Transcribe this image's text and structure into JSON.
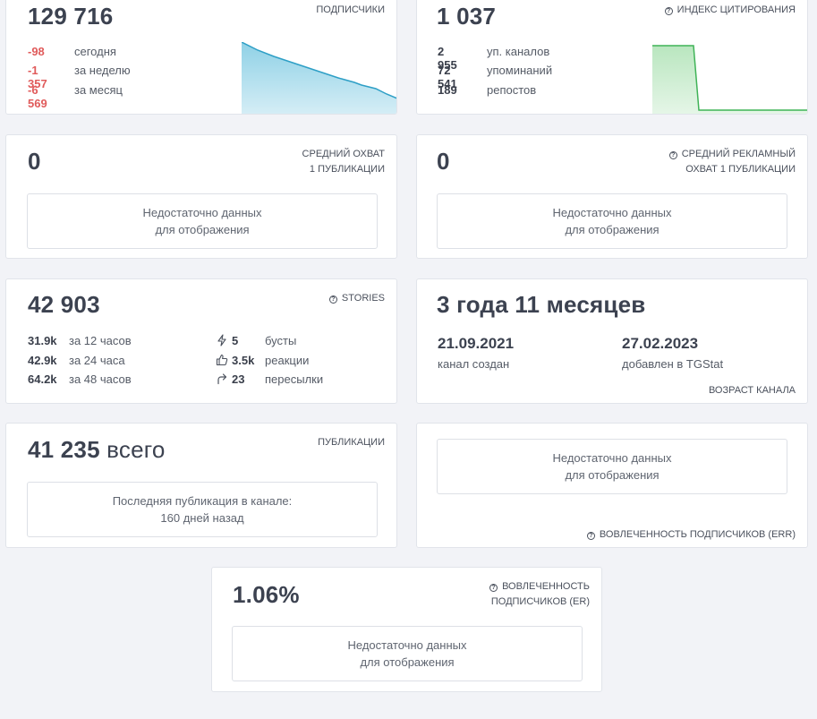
{
  "subscribers": {
    "value": "129 716",
    "label": "ПОДПИСЧИКИ",
    "rows": [
      {
        "value": "-98",
        "text": "сегодня"
      },
      {
        "value": "-1 357",
        "text": "за неделю"
      },
      {
        "value": "-6 569",
        "text": "за месяц"
      }
    ],
    "chart_data": {
      "type": "area",
      "trend": "declining",
      "color": "#3aa7c9"
    }
  },
  "citation": {
    "value": "1 037",
    "label": "ИНДЕКС ЦИТИРОВАНИЯ",
    "rows": [
      {
        "value": "2 955",
        "text": "уп. каналов"
      },
      {
        "value": "72 541",
        "text": "упоминаний"
      },
      {
        "value": "189",
        "text": "репостов"
      }
    ],
    "chart_data": {
      "type": "area",
      "trend": "step-down",
      "color": "#5cbf6b"
    }
  },
  "avg_reach": {
    "value": "0",
    "label_line1": "СРЕДНИЙ ОХВАТ",
    "label_line2": "1 ПУБЛИКАЦИИ",
    "nodata_line1": "Недостаточно данных",
    "nodata_line2": "для отображения"
  },
  "avg_ad_reach": {
    "value": "0",
    "label_line1": "СРЕДНИЙ РЕКЛАМНЫЙ",
    "label_line2": "ОХВАТ 1 ПУБЛИКАЦИИ",
    "nodata_line1": "Недостаточно данных",
    "nodata_line2": "для отображения"
  },
  "stories": {
    "value": "42 903",
    "label": "STORIES",
    "views": [
      {
        "value": "31.9k",
        "text": "за 12 часов"
      },
      {
        "value": "42.9k",
        "text": "за 24 часа"
      },
      {
        "value": "64.2k",
        "text": "за 48 часов"
      }
    ],
    "actions": [
      {
        "icon": "lightning-icon",
        "value": "5",
        "text": "бусты"
      },
      {
        "icon": "thumbs-up-icon",
        "value": "3.5k",
        "text": "реакции"
      },
      {
        "icon": "share-arrow-icon",
        "value": "23",
        "text": "пересылки"
      }
    ]
  },
  "age": {
    "value": "3 года 11 месяцев",
    "created_date": "21.09.2021",
    "created_text": "канал создан",
    "added_date": "27.02.2023",
    "added_text": "добавлен в TGStat",
    "label": "ВОЗРАСТ КАНАЛА"
  },
  "publications": {
    "value": "41 235",
    "suffix": "всего",
    "label": "ПУБЛИКАЦИИ",
    "note_line1": "Последняя публикация в канале:",
    "note_line2": "160 дней назад"
  },
  "err": {
    "nodata_line1": "Недостаточно данных",
    "nodata_line2": "для отображения",
    "label": "ВОВЛЕЧЕННОСТЬ ПОДПИСЧИКОВ (ERR)"
  },
  "er": {
    "value": "1.06%",
    "label_line1": "ВОВЛЕЧЕННОСТЬ",
    "label_line2": "ПОДПИСЧИКОВ (ER)",
    "nodata_line1": "Недостаточно данных",
    "nodata_line2": "для отображения"
  }
}
